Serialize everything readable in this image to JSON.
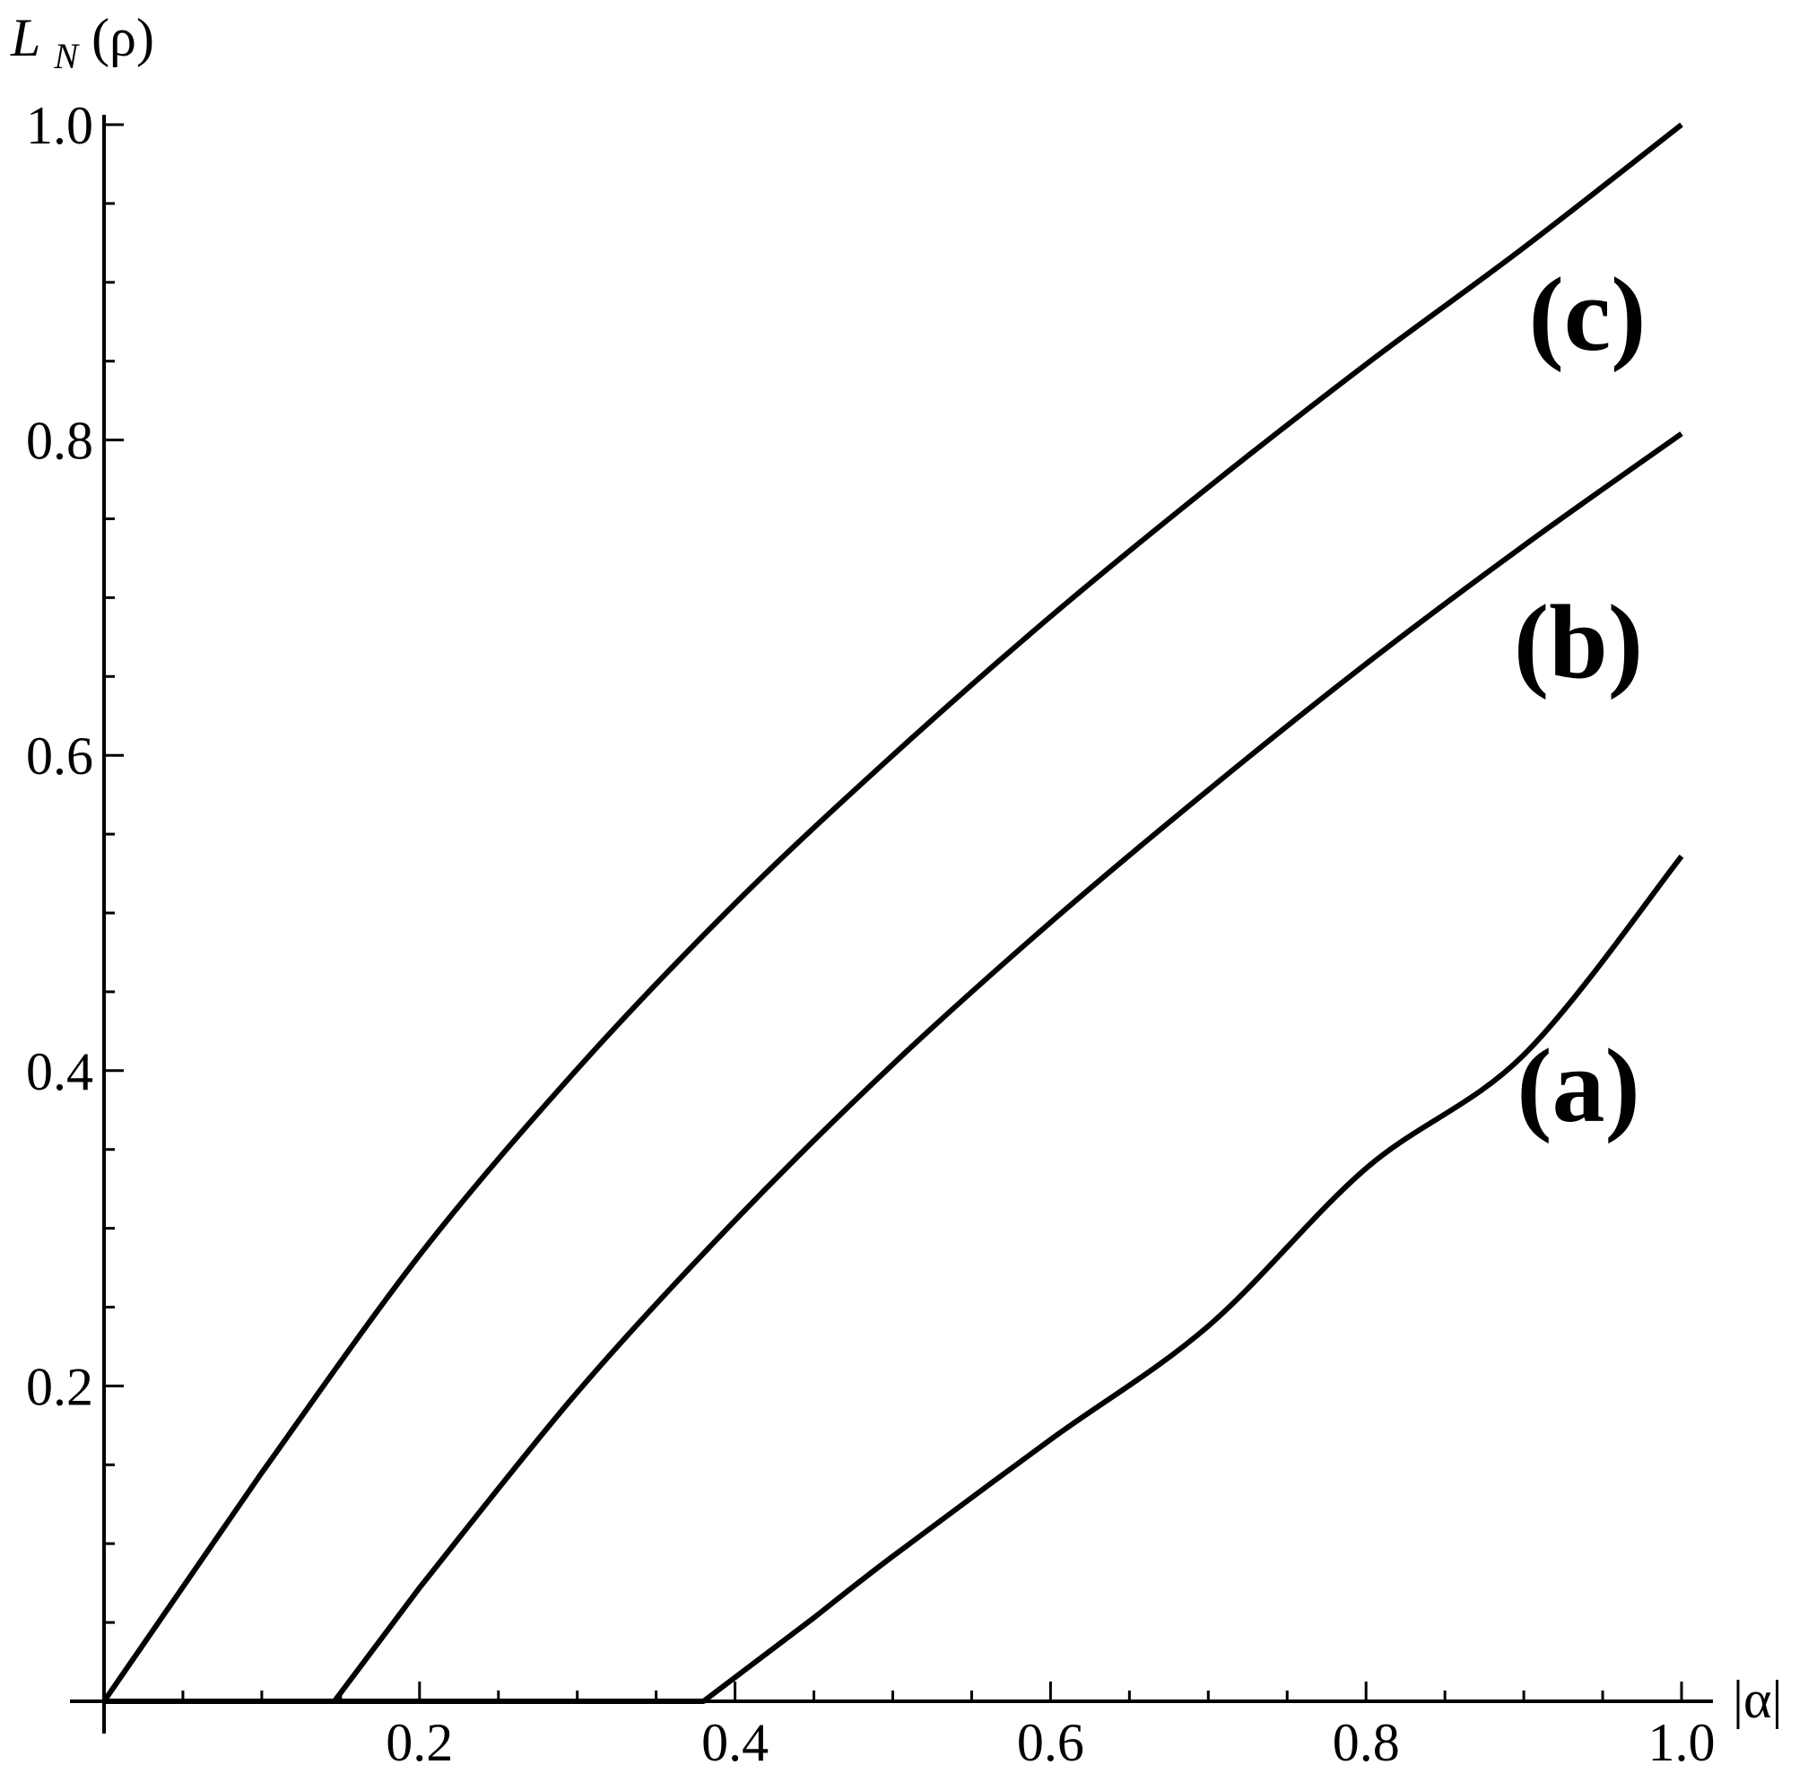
{
  "chart_data": {
    "type": "line",
    "title": "",
    "xlabel": "|α|",
    "ylabel": "L",
    "ylabel_sub": "N",
    "ylabel_arg": "(ρ)",
    "xlim": [
      0,
      1.0
    ],
    "ylim": [
      0,
      1.0
    ],
    "x_ticks": [
      "0.2",
      "0.4",
      "0.6",
      "0.8",
      "1.0"
    ],
    "y_ticks": [
      "0.2",
      "0.4",
      "0.6",
      "0.8",
      "1.0"
    ],
    "grid": false,
    "legend": "none",
    "line_color": "#000000",
    "series": [
      {
        "name": "(a)",
        "x": [
          0.0,
          0.2,
          0.38,
          0.45,
          0.5,
          0.6,
          0.7,
          0.8,
          0.9,
          1.0
        ],
        "y": [
          0.0,
          0.0,
          0.0,
          0.053,
          0.092,
          0.166,
          0.238,
          0.338,
          0.41,
          0.536
        ]
      },
      {
        "name": "(b)",
        "x": [
          0.0,
          0.1,
          0.146,
          0.2,
          0.3,
          0.4,
          0.5,
          0.6,
          0.7,
          0.8,
          0.9,
          1.0
        ],
        "y": [
          0.0,
          0.0,
          0.0,
          0.072,
          0.196,
          0.305,
          0.404,
          0.494,
          0.578,
          0.658,
          0.733,
          0.804
        ]
      },
      {
        "name": "(c)",
        "x": [
          0.0,
          0.1,
          0.2,
          0.3,
          0.4,
          0.5,
          0.6,
          0.7,
          0.8,
          0.9,
          1.0
        ],
        "y": [
          0.0,
          0.145,
          0.283,
          0.401,
          0.506,
          0.6,
          0.688,
          0.77,
          0.848,
          0.922,
          1.0
        ]
      }
    ]
  }
}
